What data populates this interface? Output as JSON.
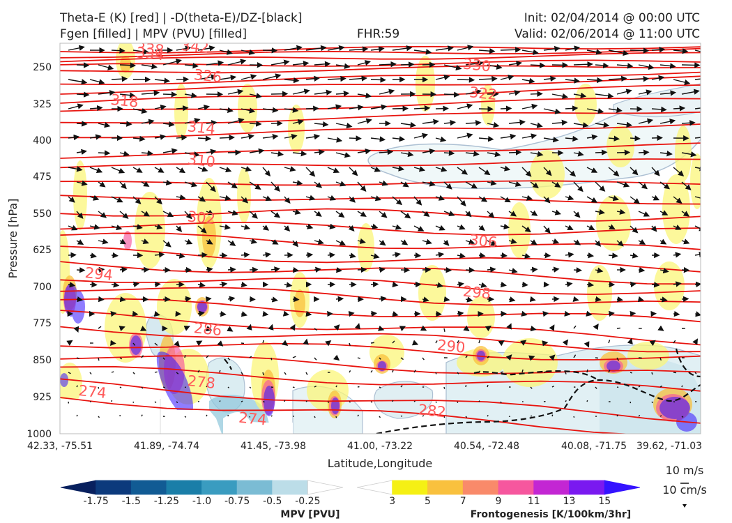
{
  "header": {
    "title_left_1": "Theta-E (K) [red] | -D(theta-E)/DZ-[black]",
    "title_left_2": "Fgen [filled] | MPV (PVU) [filled]",
    "fhr": "FHR:59",
    "init": "Init: 02/04/2014 @ 00:00 UTC",
    "valid": "Valid: 02/06/2014 @ 11:00 UTC"
  },
  "axes": {
    "ylabel": "Pressure [hPa]",
    "xlabel": "Latitude,Longitude",
    "yticks": [
      "250",
      "325",
      "400",
      "475",
      "550",
      "625",
      "700",
      "775",
      "850",
      "925",
      "1000"
    ],
    "xticks": [
      "42.33, -75.51",
      "41.89, -74.74",
      "41.45, -73.98",
      "41.00, -73.22",
      "40.54, -72.48",
      "40.08, -71.75",
      "39.62, -71.03"
    ]
  },
  "colorbars": {
    "mpv": {
      "label": "MPV [PVU]",
      "ticks": [
        "-1.75",
        "-1.5",
        "-1.25",
        "-1.0",
        "-0.75",
        "-0.5",
        "-0.25"
      ],
      "colors": [
        "#08205e",
        "#0c3a7c",
        "#115b94",
        "#1a7ea8",
        "#3a9cc0",
        "#7bbcd4",
        "#bcdde8",
        "#ffffff"
      ]
    },
    "fgen": {
      "label": "Frontogenesis [K/100km/3hr]",
      "ticks": [
        "3",
        "5",
        "7",
        "9",
        "11",
        "13",
        "15"
      ],
      "colors": [
        "#ffffff",
        "#f5f014",
        "#f9c13e",
        "#f98a6a",
        "#f6579e",
        "#c326d3",
        "#7a19f0",
        "#3413ff"
      ]
    }
  },
  "vector_key": {
    "speed": "10 m/s",
    "vertical": "10 cm/s"
  },
  "chart_data": {
    "type": "contour",
    "title": "Theta-E (K) [red] | -D(theta-E)/DZ-[black] / Fgen [filled] | MPV (PVU) [filled]",
    "xlabel": "Latitude,Longitude",
    "ylabel": "Pressure [hPa]",
    "ylim": [
      1000,
      200
    ],
    "x_positions": [
      "42.33, -75.51",
      "41.89, -74.74",
      "41.45, -73.98",
      "41.00, -73.22",
      "40.54, -72.48",
      "40.08, -71.75",
      "39.62, -71.03"
    ],
    "y_ticks_hpa": [
      250,
      325,
      400,
      475,
      550,
      625,
      700,
      775,
      850,
      925,
      1000
    ],
    "theta_e_contour_labels": [
      {
        "value": 338,
        "x": 0.14,
        "p": 212
      },
      {
        "value": 334,
        "x": 0.14,
        "p": 222
      },
      {
        "value": 342,
        "x": 0.21,
        "p": 207
      },
      {
        "value": 330,
        "x": 0.65,
        "p": 245
      },
      {
        "value": 326,
        "x": 0.23,
        "p": 267
      },
      {
        "value": 322,
        "x": 0.66,
        "p": 303
      },
      {
        "value": 318,
        "x": 0.1,
        "p": 318
      },
      {
        "value": 314,
        "x": 0.22,
        "p": 373
      },
      {
        "value": 310,
        "x": 0.22,
        "p": 440
      },
      {
        "value": 306,
        "x": 0.66,
        "p": 605
      },
      {
        "value": 302,
        "x": 0.22,
        "p": 557
      },
      {
        "value": 298,
        "x": 0.65,
        "p": 710
      },
      {
        "value": 294,
        "x": 0.06,
        "p": 672
      },
      {
        "value": 290,
        "x": 0.61,
        "p": 820
      },
      {
        "value": 286,
        "x": 0.23,
        "p": 785
      },
      {
        "value": 282,
        "x": 0.58,
        "p": 952
      },
      {
        "value": 278,
        "x": 0.22,
        "p": 893
      },
      {
        "value": 274,
        "x": 0.05,
        "p": 913
      },
      {
        "value": 274,
        "x": 0.3,
        "p": 968
      }
    ]
  }
}
